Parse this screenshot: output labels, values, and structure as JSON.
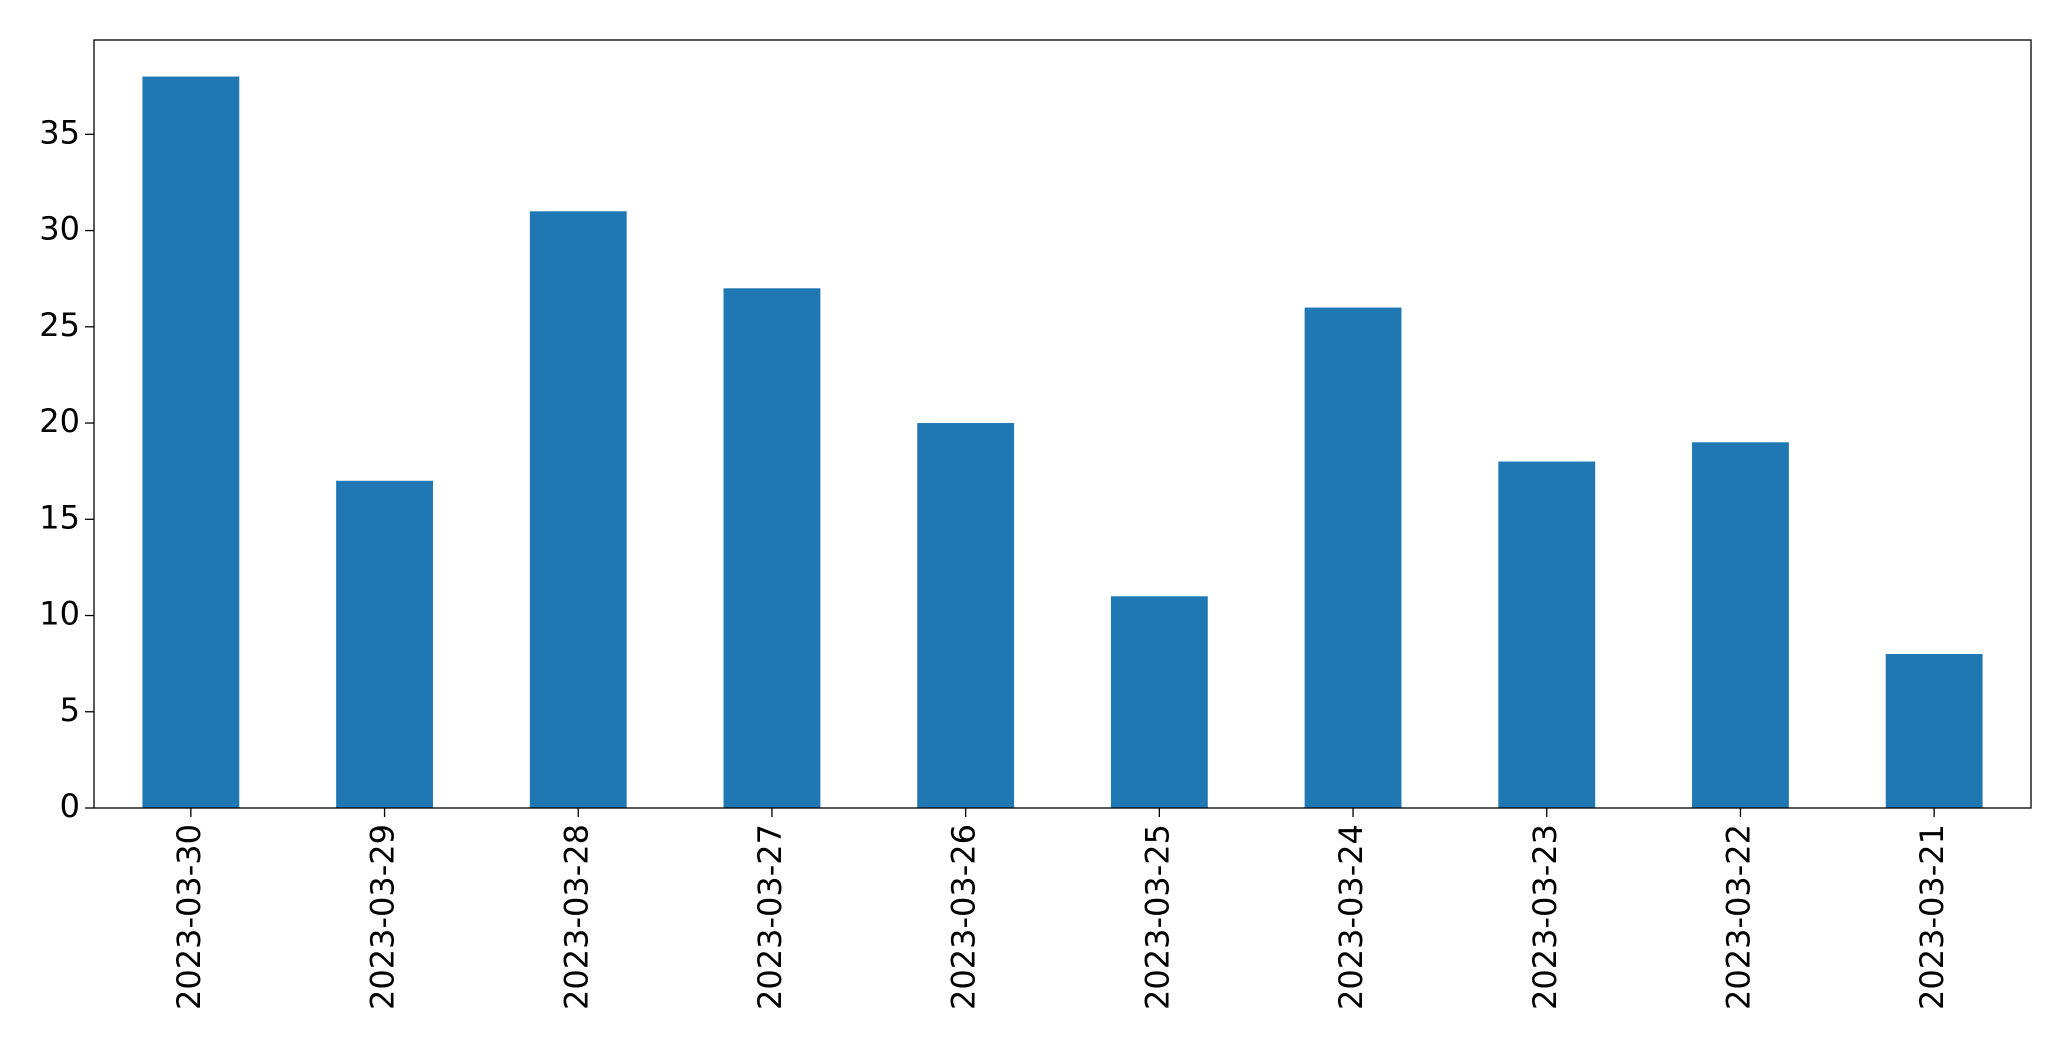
{
  "chart_data": {
    "type": "bar",
    "categories": [
      "2023-03-30",
      "2023-03-29",
      "2023-03-28",
      "2023-03-27",
      "2023-03-26",
      "2023-03-25",
      "2023-03-24",
      "2023-03-23",
      "2023-03-22",
      "2023-03-21"
    ],
    "values": [
      38,
      17,
      31,
      27,
      20,
      11,
      26,
      18,
      19,
      8
    ],
    "color": "#1f77b4",
    "ylim": [
      0,
      39.9
    ],
    "yticks": [
      0,
      5,
      10,
      15,
      20,
      25,
      30,
      35
    ],
    "grid": false
  }
}
